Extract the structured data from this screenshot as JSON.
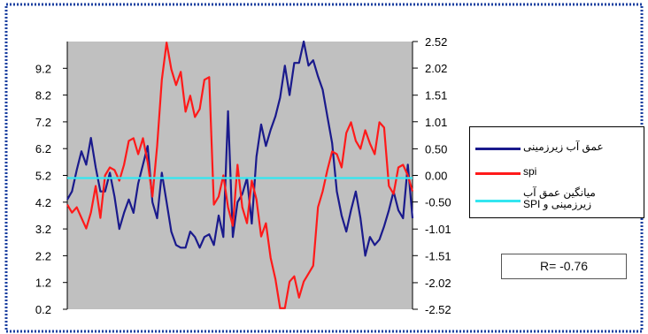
{
  "colors": {
    "plot_bg": "#c0c0c0",
    "border_dots": "#1a3fa0",
    "groundwater": "#1a1a8c",
    "spi": "#ff1a1a",
    "mean": "#33e6f0"
  },
  "legend": {
    "groundwater_label": "عمق آب زیرزمینی",
    "spi_label": "spi",
    "mean_label": "میانگین عمق آب زیرزمینی و SPI"
  },
  "correlation_label": "R= -0.76",
  "chart_data": {
    "type": "line",
    "title": "",
    "xlabel": "",
    "ylabel_left": "",
    "ylabel_right": "",
    "ylim_left": [
      0.2,
      10.2
    ],
    "ylim_right": [
      -2.52,
      2.52
    ],
    "left_ticks": [
      "0.2",
      "1.2",
      "2.2",
      "3.2",
      "4.2",
      "5.2",
      "6.2",
      "7.2",
      "8.2",
      "9.2"
    ],
    "right_ticks": [
      "-2.52",
      "-2.02",
      "-1.51",
      "-1.01",
      "-0.50",
      "0.00",
      "0.50",
      "1.01",
      "1.51",
      "2.02",
      "2.52"
    ],
    "grid": false,
    "legend_position": "right",
    "series": [
      {
        "name": "عمق آب زیرزمینی",
        "axis": "left",
        "values": [
          4.3,
          4.6,
          5.4,
          6.1,
          5.6,
          6.6,
          5.5,
          4.6,
          4.6,
          5.3,
          4.4,
          3.2,
          3.8,
          4.3,
          3.8,
          4.9,
          5.6,
          6.3,
          4.2,
          3.6,
          5.3,
          4.2,
          3.1,
          2.6,
          2.5,
          2.5,
          3.1,
          2.9,
          2.5,
          2.9,
          3.0,
          2.6,
          3.7,
          2.9,
          7.6,
          2.9,
          4.2,
          4.5,
          5.1,
          3.4,
          5.9,
          7.1,
          6.3,
          6.9,
          7.4,
          8.1,
          9.3,
          8.2,
          9.4,
          9.4,
          10.2,
          9.3,
          9.5,
          8.9,
          8.4,
          7.4,
          6.4,
          4.6,
          3.7,
          3.1,
          3.9,
          4.6,
          3.6,
          2.2,
          2.9,
          2.6,
          2.8,
          3.3,
          3.9,
          4.6,
          3.9,
          3.6,
          5.6,
          3.6
        ],
        "_note": ""
      },
      {
        "name": "spi",
        "axis": "right",
        "values": [
          -0.55,
          -0.7,
          -0.6,
          -0.8,
          -1.0,
          -0.7,
          -0.2,
          -0.8,
          0.0,
          0.15,
          0.1,
          -0.1,
          0.2,
          0.65,
          0.7,
          0.4,
          0.7,
          0.25,
          -0.4,
          0.55,
          1.8,
          2.5,
          2.0,
          1.7,
          1.95,
          1.2,
          1.5,
          1.1,
          1.25,
          1.8,
          1.85,
          -0.55,
          -0.4,
          0.0,
          -0.6,
          -0.95,
          0.2,
          -0.6,
          -0.9,
          -0.1,
          -0.45,
          -1.15,
          -0.9,
          -1.55,
          -1.95,
          -2.5,
          -2.5,
          -2.0,
          -1.9,
          -2.3,
          -2.0,
          -1.85,
          -1.7,
          -0.6,
          -0.3,
          0.1,
          0.45,
          0.4,
          0.15,
          0.8,
          1.0,
          0.65,
          0.5,
          0.85,
          0.6,
          0.4,
          1.0,
          0.9,
          -0.2,
          -0.35,
          0.15,
          0.2,
          0.0,
          -0.3
        ],
        "_note": ""
      },
      {
        "name": "میانگین عمق آب زیرزمینی و SPI",
        "axis": "left",
        "values": [
          5.1,
          5.1
        ],
        "_note": ""
      }
    ]
  }
}
